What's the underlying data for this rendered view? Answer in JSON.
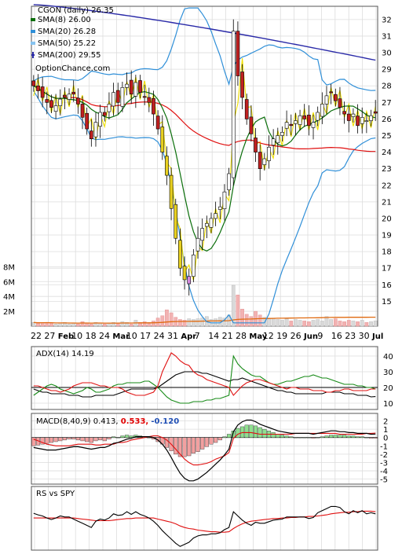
{
  "chart_data": [
    {
      "type": "candlestick",
      "title": "CGON (daily) 26.35",
      "watermark": "OptionChance.com",
      "ylim": [
        13.5,
        32.8
      ],
      "yticks": [
        15,
        16,
        17,
        18,
        19,
        20,
        21,
        22,
        23,
        24,
        25,
        26,
        27,
        28,
        29,
        30,
        31,
        32
      ],
      "legend": [
        {
          "label": "SMA(8) 26.00",
          "color": "#0a6e0a"
        },
        {
          "label": "SMA(20) 26.28",
          "color": "#2f8fd8"
        },
        {
          "label": "SMA(50) 25.22",
          "color": "#86c3f0"
        },
        {
          "label": "SMA(200) 29.55",
          "color": "#2a2aa8"
        }
      ],
      "close": [
        28.0,
        27.7,
        27.3,
        27.0,
        26.7,
        26.8,
        27.2,
        27.3,
        27.5,
        27.5,
        26.9,
        26.1,
        25.4,
        24.8,
        25.8,
        26.4,
        26.2,
        26.9,
        27.6,
        27.0,
        27.9,
        28.1,
        27.5,
        28.2,
        27.6,
        27.3,
        27.0,
        26.3,
        25.4,
        24.0,
        22.6,
        20.6,
        18.8,
        17.0,
        16.3,
        16.5,
        17.8,
        18.8,
        19.4,
        19.7,
        20.0,
        20.3,
        20.7,
        21.6,
        22.7,
        31.3,
        28.6,
        27.3,
        26.0,
        25.1,
        24.0,
        23.0,
        23.6,
        24.3,
        24.8,
        25.0,
        25.2,
        25.8,
        25.6,
        25.9,
        26.2,
        26.0,
        25.6,
        25.8,
        26.4,
        26.9,
        27.4,
        27.6,
        27.1,
        26.7,
        26.3,
        25.9,
        26.3,
        25.6,
        26.1,
        25.9,
        26.2,
        26.35
      ],
      "volume_ylim": [
        0,
        9.2
      ],
      "volume_ticks": [
        "2M",
        "4M",
        "6M",
        "8M"
      ],
      "volume": [
        0.5,
        0.4,
        0.5,
        0.5,
        0.4,
        0.3,
        0.4,
        0.5,
        0.3,
        0.4,
        0.3,
        0.6,
        0.4,
        0.3,
        0.5,
        0.4,
        0.3,
        0.4,
        0.5,
        0.4,
        0.6,
        0.5,
        0.3,
        0.8,
        0.5,
        0.6,
        0.5,
        0.7,
        1.1,
        1.4,
        2.2,
        1.8,
        1.2,
        0.9,
        0.8,
        1.0,
        0.9,
        1.0,
        1.1,
        1.3,
        0.9,
        1.0,
        1.2,
        1.1,
        1.5,
        5.5,
        4.2,
        2.3,
        1.6,
        1.3,
        2.0,
        1.5,
        1.2,
        1.0,
        1.1,
        0.9,
        0.8,
        1.0,
        0.7,
        0.9,
        0.8,
        0.7,
        0.6,
        0.8,
        0.9,
        0.7,
        1.3,
        0.9,
        1.0,
        0.7,
        0.6,
        0.8,
        0.7,
        0.6,
        0.8,
        0.5,
        0.6,
        0.7
      ],
      "x_tick_labels": [
        "22",
        "27",
        "Feb",
        "10",
        "18",
        "24",
        "Mar",
        "10",
        "17",
        "24",
        "31",
        "Apr",
        "7",
        "14",
        "21",
        "28",
        "May",
        "12",
        "19",
        "26",
        "Jun",
        "9",
        "16",
        "23",
        "30",
        "Jul"
      ],
      "x_tick_bold": [
        "Feb",
        "Mar",
        "Apr",
        "May",
        "Jun",
        "Jul"
      ]
    },
    {
      "type": "line",
      "title": "ADX(14) 14.19",
      "ylim": [
        6,
        46
      ],
      "yticks": [
        10,
        20,
        30,
        40
      ],
      "reference_line": 20,
      "series": [
        {
          "values": [
            19,
            18,
            17,
            17,
            16,
            16,
            16,
            16,
            15,
            15,
            15,
            14,
            14,
            14,
            15,
            15,
            15,
            15,
            15,
            16,
            17,
            18,
            19,
            19,
            19,
            19,
            19,
            19,
            20,
            22,
            24,
            26,
            28,
            29,
            30,
            30,
            30,
            30,
            29,
            29,
            28,
            27,
            26,
            25,
            24,
            25,
            25,
            26,
            25,
            24,
            23,
            22,
            21,
            20,
            19,
            18,
            18,
            17,
            17,
            16,
            16,
            16,
            16,
            16,
            16,
            16,
            17,
            17,
            17,
            17,
            16,
            16,
            16,
            15,
            15,
            15,
            14,
            14.19
          ]
        },
        {
          "values": [
            15,
            17,
            19,
            21,
            22,
            21,
            19,
            18,
            17,
            16,
            17,
            18,
            20,
            19,
            17,
            17,
            18,
            19,
            21,
            22,
            22,
            23,
            23,
            23,
            23,
            24,
            24,
            22,
            20,
            17,
            14,
            12,
            11,
            10,
            10,
            10,
            11,
            11,
            11,
            12,
            12,
            13,
            13,
            14,
            15,
            40,
            35,
            32,
            30,
            28,
            27,
            27,
            25,
            23,
            22,
            22,
            23,
            24,
            24,
            25,
            26,
            27,
            27,
            28,
            27,
            26,
            26,
            25,
            24,
            23,
            22,
            22,
            22,
            21,
            21,
            20,
            20,
            19
          ]
        },
        {
          "values": [
            21,
            21,
            20,
            19,
            18,
            18,
            17,
            18,
            19,
            21,
            22,
            23,
            23,
            23,
            22,
            21,
            21,
            20,
            20,
            20,
            19,
            17,
            16,
            15,
            15,
            15,
            16,
            17,
            21,
            30,
            36,
            42,
            40,
            37,
            35,
            34,
            30,
            28,
            27,
            25,
            24,
            23,
            22,
            21,
            20,
            15,
            18,
            21,
            23,
            24,
            25,
            25,
            24,
            23,
            22,
            21,
            20,
            19,
            20,
            20,
            19,
            19,
            19,
            18,
            18,
            18,
            17,
            17,
            18,
            18,
            19,
            19,
            18,
            18,
            18,
            18,
            19,
            19
          ]
        }
      ]
    },
    {
      "type": "bar",
      "title": "MACD(8,40,9) 0.413,",
      "title_value_1": "0.533,",
      "title_value_2": "-0.120",
      "ylim": [
        -5.6,
        2.9
      ],
      "yticks": [
        -5,
        -4,
        -3,
        -2,
        -1,
        0,
        1,
        2
      ],
      "histogram": [
        -1.0,
        -0.9,
        -0.8,
        -0.7,
        -0.6,
        -0.5,
        -0.4,
        -0.3,
        -0.2,
        -0.2,
        -0.3,
        -0.4,
        -0.5,
        -0.6,
        -0.4,
        -0.3,
        -0.4,
        -0.2,
        0.1,
        0.0,
        0.2,
        0.3,
        0.2,
        0.3,
        0.2,
        0.1,
        0.0,
        -0.2,
        -0.5,
        -0.8,
        -1.2,
        -1.6,
        -2.0,
        -2.3,
        -2.3,
        -2.2,
        -1.9,
        -1.7,
        -1.4,
        -1.1,
        -0.8,
        -0.6,
        -0.3,
        0.1,
        0.4,
        0.8,
        1.1,
        1.3,
        1.5,
        1.5,
        1.4,
        1.2,
        1.0,
        0.8,
        0.6,
        0.4,
        0.3,
        0.2,
        0.1,
        0.0,
        0.0,
        0.0,
        0.0,
        -0.1,
        0.0,
        0.1,
        0.2,
        0.3,
        0.3,
        0.3,
        0.3,
        0.2,
        0.2,
        0.1,
        0.1,
        0.0,
        -0.1,
        -0.1
      ],
      "series": [
        {
          "values": [
            -1.2,
            -1.3,
            -1.4,
            -1.5,
            -1.5,
            -1.5,
            -1.4,
            -1.3,
            -1.2,
            -1.1,
            -1.1,
            -1.2,
            -1.3,
            -1.4,
            -1.3,
            -1.2,
            -1.2,
            -1.0,
            -0.7,
            -0.6,
            -0.4,
            -0.2,
            -0.1,
            0.1,
            0.1,
            0.1,
            0.1,
            0.0,
            -0.3,
            -0.8,
            -1.5,
            -2.4,
            -3.4,
            -4.3,
            -4.9,
            -5.2,
            -5.2,
            -5.0,
            -4.6,
            -4.2,
            -3.7,
            -3.2,
            -2.7,
            -2.1,
            -1.4,
            0.7,
            1.5,
            1.9,
            2.1,
            2.1,
            1.9,
            1.6,
            1.4,
            1.2,
            1.0,
            0.8,
            0.7,
            0.6,
            0.5,
            0.5,
            0.5,
            0.5,
            0.5,
            0.4,
            0.5,
            0.6,
            0.7,
            0.8,
            0.8,
            0.7,
            0.7,
            0.6,
            0.6,
            0.5,
            0.5,
            0.5,
            0.4,
            0.413
          ]
        },
        {
          "values": [
            -0.2,
            -0.4,
            -0.6,
            -0.8,
            -0.9,
            -1.0,
            -1.0,
            -1.0,
            -1.0,
            -0.9,
            -0.8,
            -0.8,
            -0.8,
            -0.8,
            -0.9,
            -0.9,
            -0.8,
            -0.8,
            -0.8,
            -0.6,
            -0.6,
            -0.5,
            -0.3,
            -0.2,
            -0.1,
            0.0,
            0.1,
            0.2,
            0.2,
            0.0,
            -0.3,
            -0.8,
            -1.4,
            -2.0,
            -2.6,
            -3.0,
            -3.3,
            -3.3,
            -3.2,
            -3.1,
            -2.9,
            -2.6,
            -2.4,
            -2.2,
            -1.8,
            -0.1,
            0.4,
            0.6,
            0.6,
            0.6,
            0.5,
            0.4,
            0.4,
            0.4,
            0.4,
            0.4,
            0.4,
            0.4,
            0.4,
            0.5,
            0.5,
            0.5,
            0.5,
            0.5,
            0.5,
            0.5,
            0.5,
            0.5,
            0.5,
            0.4,
            0.4,
            0.4,
            0.4,
            0.4,
            0.4,
            0.5,
            0.5,
            0.533
          ]
        }
      ]
    },
    {
      "type": "line",
      "title": "RS vs SPY",
      "ylim": [
        0,
        100
      ],
      "series": [
        {
          "values": [
            67,
            64,
            62,
            58,
            55,
            58,
            62,
            60,
            60,
            56,
            52,
            48,
            44,
            40,
            52,
            56,
            54,
            58,
            66,
            63,
            64,
            70,
            65,
            70,
            65,
            62,
            58,
            52,
            44,
            34,
            26,
            18,
            10,
            4,
            8,
            12,
            20,
            24,
            26,
            26,
            28,
            28,
            30,
            36,
            40,
            70,
            62,
            54,
            48,
            44,
            50,
            48,
            48,
            51,
            54,
            55,
            56,
            60,
            60,
            60,
            60,
            60,
            57,
            59,
            68,
            72,
            76,
            80,
            80,
            78,
            70,
            66,
            72,
            68,
            72,
            66,
            68,
            66
          ]
        },
        {
          "values": [
            58,
            58,
            58,
            58,
            58,
            58,
            58,
            58,
            58,
            58,
            57,
            56,
            55,
            54,
            53,
            53,
            53,
            53,
            54,
            55,
            56,
            57,
            57,
            58,
            58,
            58,
            58,
            58,
            56,
            54,
            52,
            50,
            47,
            43,
            40,
            38,
            37,
            35,
            34,
            33,
            32,
            32,
            31,
            31,
            32,
            38,
            43,
            47,
            50,
            52,
            53,
            54,
            55,
            56,
            57,
            57,
            58,
            58,
            59,
            59,
            60,
            60,
            61,
            61,
            62,
            63,
            64,
            66,
            67,
            68,
            69,
            69,
            70,
            70,
            71,
            71,
            71,
            70
          ]
        }
      ]
    }
  ]
}
